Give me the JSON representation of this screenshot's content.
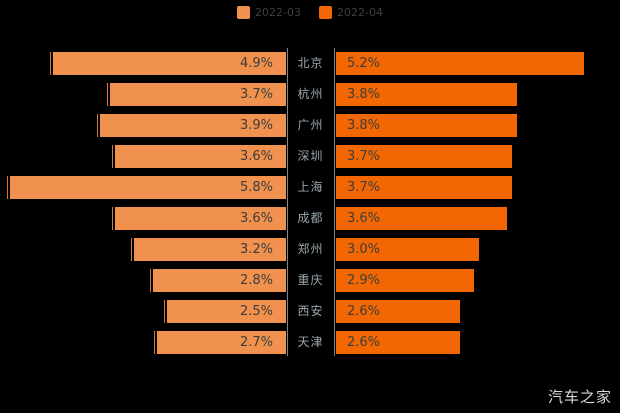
{
  "chart_data": {
    "type": "bar",
    "orientation": "horizontal-mirrored",
    "title": "",
    "categories": [
      "北京",
      "杭州",
      "广州",
      "深圳",
      "上海",
      "成都",
      "郑州",
      "重庆",
      "西安",
      "天津"
    ],
    "series": [
      {
        "name": "2022-03",
        "color": "#F0914D",
        "values": [
          4.9,
          3.7,
          3.9,
          3.6,
          5.8,
          3.6,
          3.2,
          2.8,
          2.5,
          2.7
        ]
      },
      {
        "name": "2022-04",
        "color": "#F26702",
        "values": [
          5.2,
          3.8,
          3.8,
          3.7,
          3.7,
          3.6,
          3.0,
          2.9,
          2.6,
          2.6
        ]
      }
    ],
    "value_suffix": "%",
    "value_labels_on_bars": true,
    "xlim": [
      0,
      6
    ],
    "grid": false,
    "legend_position": "top"
  },
  "legend": {
    "items": [
      {
        "label": "2022-03",
        "color": "#F0914D"
      },
      {
        "label": "2022-04",
        "color": "#F26702"
      }
    ]
  },
  "watermark": "汽车之家",
  "colors": {
    "background": "#000000",
    "bar_light": "#F0914D",
    "bar_dark": "#F26702",
    "value_text": "#3D3D3D",
    "category_text": "#98A6AD",
    "legend_text": "#3F3F3F",
    "axis_line": "#848484",
    "watermark_text": "#D9D9D9"
  }
}
